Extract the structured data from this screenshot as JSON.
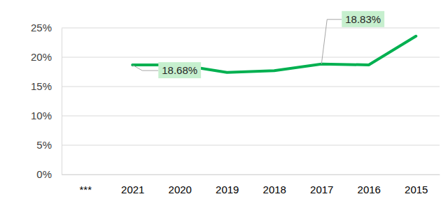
{
  "chart_data": {
    "type": "line",
    "categories": [
      "***",
      "2021",
      "2020",
      "2019",
      "2018",
      "2017",
      "2016",
      "2015"
    ],
    "values": [
      null,
      18.68,
      18.68,
      17.4,
      17.7,
      18.83,
      18.7,
      23.6
    ],
    "color": "#00b050",
    "ylim": [
      0,
      25
    ],
    "yticks": [
      {
        "value": 0,
        "label": "0%"
      },
      {
        "value": 5,
        "label": "5%"
      },
      {
        "value": 10,
        "label": "10%"
      },
      {
        "value": 15,
        "label": "15%"
      },
      {
        "value": 20,
        "label": "20%"
      },
      {
        "value": 25,
        "label": "25%"
      }
    ],
    "grid": true,
    "data_labels": true,
    "value_labels": [
      null,
      "18.68%",
      null,
      null,
      null,
      "18.83%",
      null,
      null
    ]
  }
}
